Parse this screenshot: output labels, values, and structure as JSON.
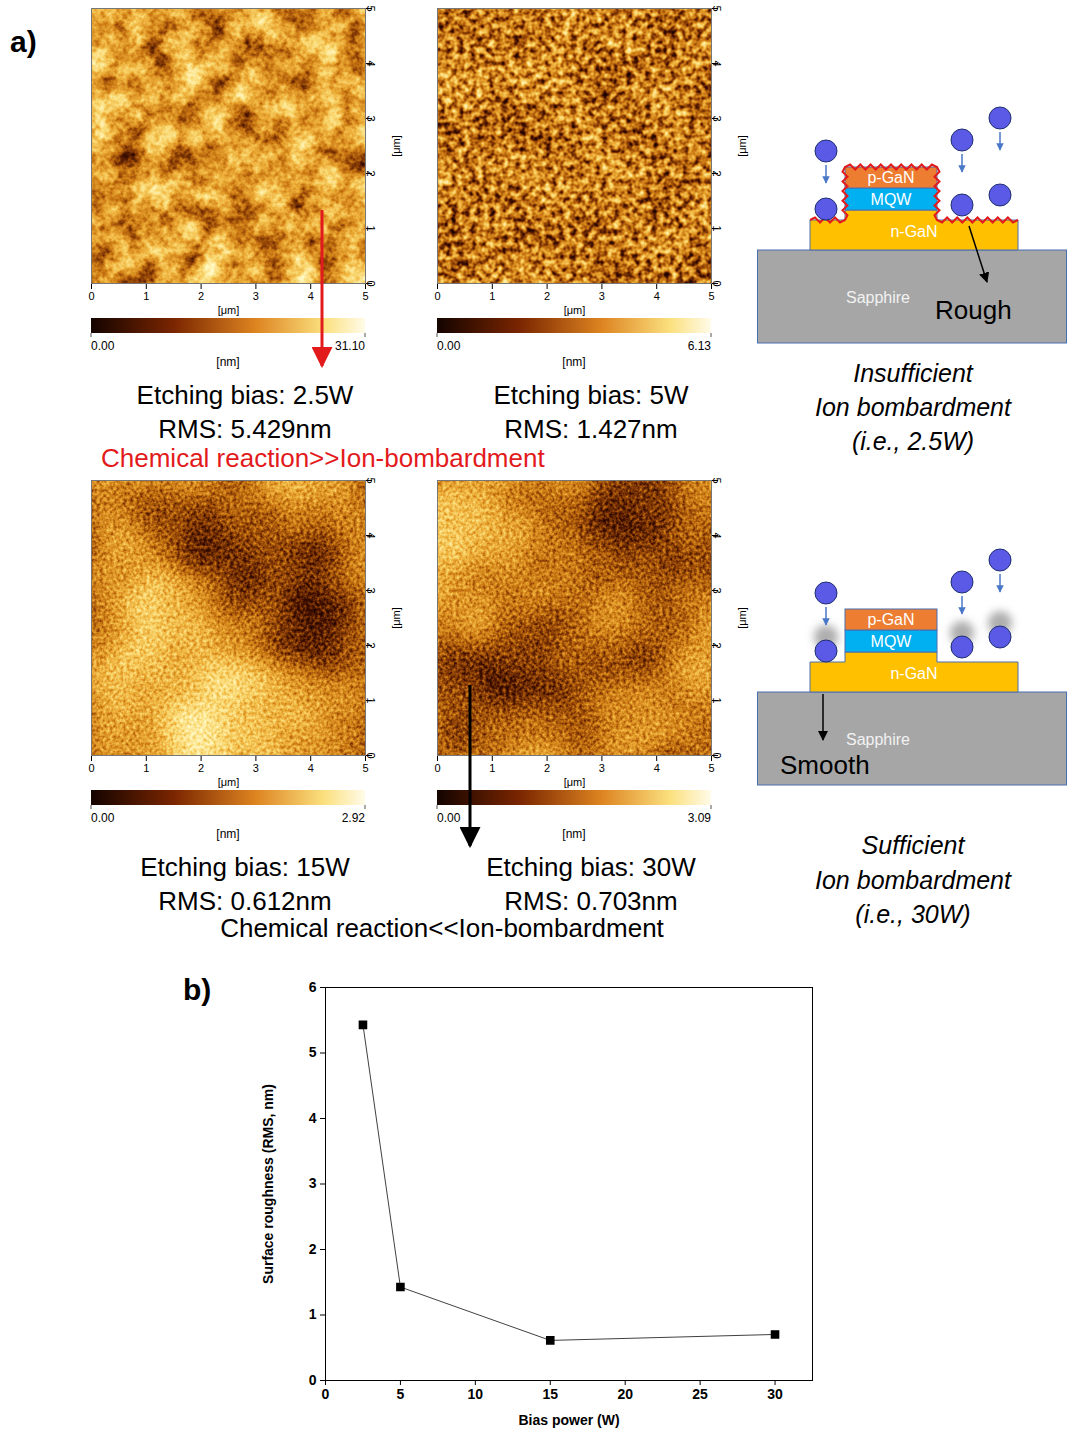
{
  "panel_a": {
    "panel_label": "a)",
    "afm_images": [
      {
        "bias": "Etching bias: 2.5W",
        "rms": "RMS: 5.429nm",
        "xlim": [
          0,
          5
        ],
        "ylim": [
          0,
          5
        ],
        "xticks": [
          0,
          1,
          2,
          3,
          4,
          5
        ],
        "yticks": [
          0,
          1,
          2,
          3,
          4,
          5
        ],
        "x_label": "[μm]",
        "y_label": "[μm]",
        "colorbar_range": [
          0,
          31.1
        ],
        "colorbar_ticks": [
          {
            "value": 0,
            "label": "0.00"
          },
          {
            "value": 31.1,
            "label": "31.10"
          }
        ],
        "colorbar_label": "[nm]"
      },
      {
        "bias": "Etching bias: 5W",
        "rms": "RMS: 1.427nm",
        "xlim": [
          0,
          5
        ],
        "ylim": [
          0,
          5
        ],
        "xticks": [
          0,
          1,
          2,
          3,
          4,
          5
        ],
        "yticks": [
          0,
          1,
          2,
          3,
          4,
          5
        ],
        "x_label": "[μm]",
        "y_label": "[μm]",
        "colorbar_range": [
          0,
          6.13
        ],
        "colorbar_ticks": [
          {
            "value": 0,
            "label": "0.00"
          },
          {
            "value": 6.13,
            "label": "6.13"
          }
        ],
        "colorbar_label": "[nm]"
      },
      {
        "bias": "Etching bias: 15W",
        "rms": "RMS: 0.612nm",
        "xlim": [
          0,
          5
        ],
        "ylim": [
          0,
          5
        ],
        "xticks": [
          0,
          1,
          2,
          3,
          4,
          5
        ],
        "yticks": [
          0,
          1,
          2,
          3,
          4,
          5
        ],
        "x_label": "[μm]",
        "y_label": "[μm]",
        "colorbar_range": [
          0,
          2.92
        ],
        "colorbar_ticks": [
          {
            "value": 0,
            "label": "0.00"
          },
          {
            "value": 2.92,
            "label": "2.92"
          }
        ],
        "colorbar_label": "[nm]"
      },
      {
        "bias": "Etching bias: 30W",
        "rms": "RMS: 0.703nm",
        "xlim": [
          0,
          5
        ],
        "ylim": [
          0,
          5
        ],
        "xticks": [
          0,
          1,
          2,
          3,
          4,
          5
        ],
        "yticks": [
          0,
          1,
          2,
          3,
          4,
          5
        ],
        "x_label": "[μm]",
        "y_label": "[μm]",
        "colorbar_range": [
          0,
          3.09
        ],
        "colorbar_ticks": [
          {
            "value": 0,
            "label": "0.00"
          },
          {
            "value": 3.09,
            "label": "3.09"
          }
        ],
        "colorbar_label": "[nm]"
      }
    ],
    "regimes": [
      {
        "text": "Chemical reaction>>Ion-bombardment",
        "color": "#e31a1c"
      },
      {
        "text": "Chemical reaction<<Ion-bombardment",
        "color": "#000000"
      }
    ],
    "schematics": [
      {
        "layers": [
          "p-GaN",
          "MQW",
          "n-GaN",
          "Sapphire"
        ],
        "surface": "Rough",
        "caption": [
          "Insufficient",
          "Ion bombardment",
          "(i.e., 2.5W)"
        ]
      },
      {
        "layers": [
          "p-GaN",
          "MQW",
          "n-GaN",
          "Sapphire"
        ],
        "surface": "Smooth",
        "caption": [
          "Sufficient",
          "Ion bombardment",
          "(i.e., 30W)"
        ]
      }
    ]
  },
  "chart_data": {
    "type": "line",
    "panel_label": "b)",
    "x_label": "Bias power (W)",
    "y_label": "Surface roughness (RMS, nm)",
    "x": [
      2.5,
      5,
      15,
      30
    ],
    "values": [
      5.429,
      1.427,
      0.612,
      0.703
    ],
    "color": "#000000",
    "marker": "square",
    "line_style": "solid",
    "xlim": [
      0,
      32.5
    ],
    "ylim": [
      0,
      6
    ],
    "xticks": [
      0,
      5,
      10,
      15,
      20,
      25,
      30
    ],
    "yticks": [
      0,
      1,
      2,
      3,
      4,
      5,
      6
    ],
    "grid": false
  }
}
